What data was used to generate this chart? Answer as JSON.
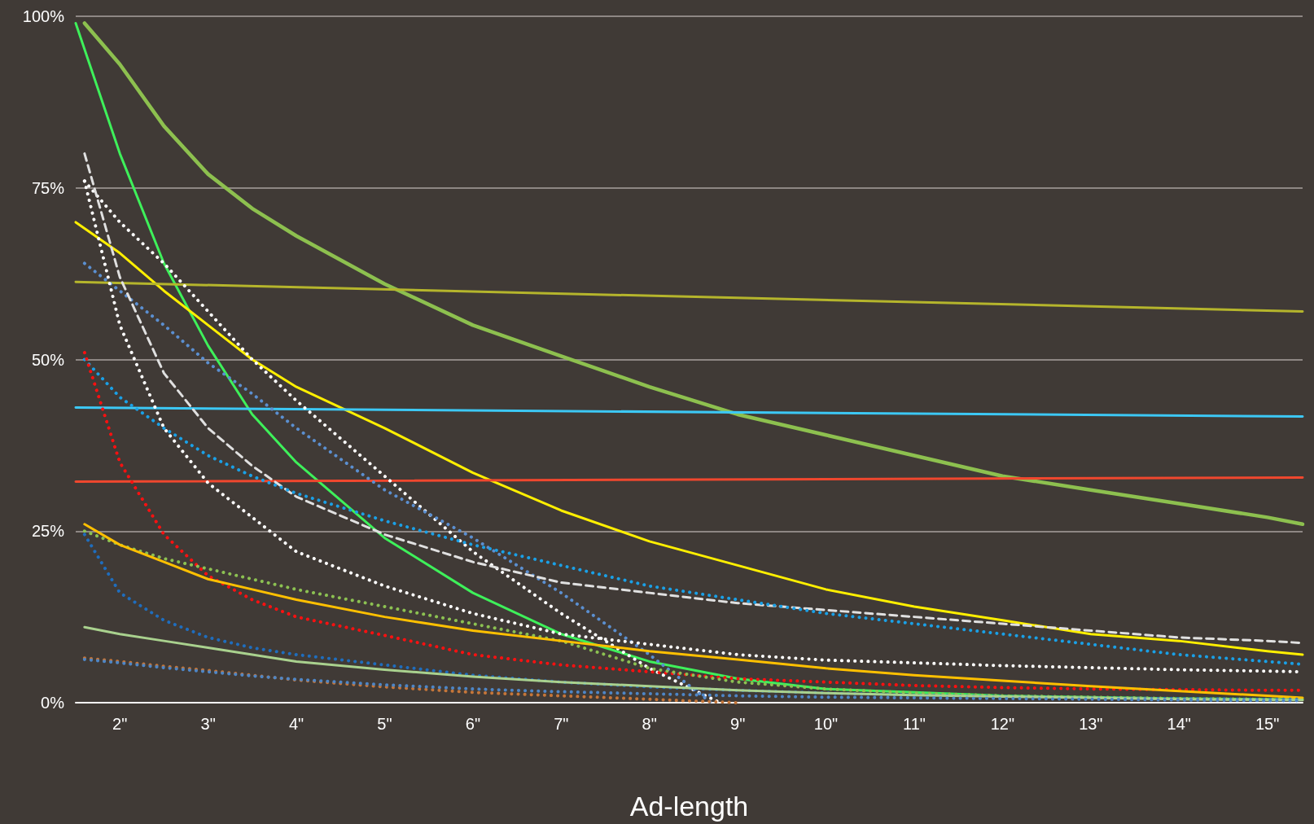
{
  "chart_data": {
    "type": "line",
    "xlabel": "Ad-length",
    "x": [
      1.6,
      2,
      2.5,
      3,
      3.5,
      4,
      5,
      6,
      7,
      8,
      9,
      10,
      11,
      12,
      13,
      14,
      15,
      15.4
    ],
    "xlim": [
      1.5,
      15.4
    ],
    "xticks": [
      {
        "value": 2,
        "label": "2\""
      },
      {
        "value": 3,
        "label": "3\""
      },
      {
        "value": 4,
        "label": "4\""
      },
      {
        "value": 5,
        "label": "5\""
      },
      {
        "value": 6,
        "label": "6\""
      },
      {
        "value": 7,
        "label": "7\""
      },
      {
        "value": 8,
        "label": "8\""
      },
      {
        "value": 9,
        "label": "9\""
      },
      {
        "value": 10,
        "label": "10\""
      },
      {
        "value": 11,
        "label": "11\""
      },
      {
        "value": 12,
        "label": "12\""
      },
      {
        "value": 13,
        "label": "13\""
      },
      {
        "value": 14,
        "label": "14\""
      },
      {
        "value": 15,
        "label": "15\""
      }
    ],
    "ylim": [
      0,
      100
    ],
    "yticks": [
      {
        "value": 0,
        "label": "0%"
      },
      {
        "value": 25,
        "label": "25%"
      },
      {
        "value": 50,
        "label": "50%"
      },
      {
        "value": 75,
        "label": "75%"
      },
      {
        "value": 100,
        "label": "100%"
      }
    ],
    "grid": "y",
    "marker": "none",
    "series": [
      {
        "color": "#8dc04f",
        "line_style": "solid",
        "values": [
          99,
          93,
          84,
          77,
          72,
          68,
          61,
          55,
          50.5,
          46,
          42,
          39,
          36,
          33,
          31,
          29,
          27,
          26
        ]
      },
      {
        "color": "#3ef05a",
        "line_style": "solid",
        "x": [
          1.5,
          2,
          2.5,
          3,
          3.5,
          4,
          5,
          6,
          7,
          8,
          9,
          10,
          11,
          12,
          13,
          14,
          15,
          15.4
        ],
        "values": [
          99,
          80,
          64,
          52,
          42,
          35,
          24,
          16,
          10,
          6,
          3.5,
          2,
          1.5,
          1,
          0.8,
          0.6,
          0.5,
          0.5
        ]
      },
      {
        "color": "#ffef00",
        "line_style": "solid",
        "x": [
          1.5,
          2,
          2.5,
          3,
          3.5,
          4,
          5,
          6,
          7,
          8,
          9,
          10,
          11,
          12,
          13,
          14,
          15,
          15.4
        ],
        "values": [
          70,
          65.5,
          60,
          55,
          50,
          46,
          40,
          33.5,
          28,
          23.5,
          20,
          16.5,
          14,
          12,
          10,
          9,
          7.5,
          7
        ]
      },
      {
        "color": "#b5b52c",
        "line_style": "solid",
        "x": [
          1.5,
          15.4
        ],
        "values": [
          61.3,
          57
        ]
      },
      {
        "color": "#3cc8f5",
        "line_style": "solid",
        "x": [
          1.5,
          15.4
        ],
        "values": [
          43,
          41.7
        ]
      },
      {
        "color": "#f0472e",
        "line_style": "solid",
        "x": [
          1.5,
          15.4
        ],
        "values": [
          32.2,
          32.8
        ]
      },
      {
        "color": "#ffffff",
        "line_style": "dotted",
        "x": [
          1.6,
          2,
          2.5,
          3,
          3.5,
          4,
          5,
          6,
          7,
          8,
          8.8
        ],
        "values": [
          76,
          70,
          64,
          57,
          50,
          44,
          33,
          22,
          13,
          5,
          0
        ]
      },
      {
        "color": "#5b8fd0",
        "line_style": "dotted",
        "x": [
          1.6,
          2,
          2.5,
          3,
          3.5,
          4,
          5,
          6,
          7,
          8,
          8.7
        ],
        "values": [
          64,
          60,
          55,
          49.5,
          45,
          40,
          31,
          24,
          16,
          7,
          0
        ]
      },
      {
        "color": "#ffffff",
        "line_style": "dotted",
        "values": [
          76,
          55,
          40,
          32,
          27,
          22,
          17,
          13,
          10,
          8.5,
          7,
          6.2,
          5.8,
          5.4,
          5.1,
          4.8,
          4.6,
          4.5
        ]
      },
      {
        "color": "#e0e0e0",
        "line_style": "dashed",
        "values": [
          80,
          62,
          48,
          40,
          34.5,
          30,
          24.5,
          20.5,
          17.5,
          16,
          14.5,
          13.5,
          12.5,
          11.5,
          10.5,
          9.5,
          9,
          8.7
        ]
      },
      {
        "color": "#1aa0e6",
        "line_style": "dotted",
        "values": [
          50,
          44.5,
          40,
          36,
          33,
          30.5,
          26.5,
          23,
          20,
          17,
          15,
          13,
          11.5,
          10,
          8.5,
          7,
          6,
          5.6
        ]
      },
      {
        "color": "#ff1010",
        "line_style": "dotted",
        "values": [
          51,
          35,
          24.5,
          18.5,
          15,
          12.5,
          9.8,
          7,
          5.5,
          4.5,
          3.5,
          3,
          2.5,
          2.2,
          2,
          1.9,
          1.8,
          1.8
        ]
      },
      {
        "color": "#8cc152",
        "line_style": "dotted",
        "values": [
          25,
          23,
          21,
          19.5,
          18,
          16.5,
          14,
          11.5,
          9,
          5,
          3,
          2,
          1.4,
          1,
          0.8,
          0.6,
          0.5,
          0.5
        ]
      },
      {
        "color": "#ffc000",
        "line_style": "solid",
        "values": [
          26,
          23,
          20.5,
          18,
          16.5,
          15,
          12.5,
          10.5,
          9,
          7.5,
          6.3,
          5,
          4,
          3.2,
          2.4,
          1.7,
          1,
          0.7
        ]
      },
      {
        "color": "#1f6dbd",
        "line_style": "dotted",
        "values": [
          24.5,
          16,
          12,
          9.5,
          8,
          7,
          5.5,
          4,
          3,
          2.3,
          1.8,
          1.4,
          1.1,
          0.9,
          0.7,
          0.6,
          0.5,
          0.5
        ]
      },
      {
        "color": "#a9d18e",
        "line_style": "solid",
        "values": [
          11,
          10,
          9,
          8,
          7,
          6,
          4.8,
          3.8,
          3,
          2.4,
          1.8,
          1.4,
          1.1,
          0.9,
          0.7,
          0.5,
          0.4,
          0.4
        ]
      },
      {
        "color": "#c5763a",
        "line_style": "dotted",
        "x": [
          1.6,
          2,
          2.5,
          3,
          3.5,
          4,
          5,
          6,
          7,
          8,
          9
        ],
        "values": [
          6.5,
          6,
          5.3,
          4.7,
          4,
          3.3,
          2.3,
          1.5,
          1,
          0.5,
          0
        ]
      },
      {
        "color": "#4e86c6",
        "line_style": "dotted",
        "values": [
          6.3,
          5.8,
          5.1,
          4.5,
          3.9,
          3.4,
          2.6,
          2,
          1.6,
          1.3,
          1,
          0.8,
          0.7,
          0.6,
          0.5,
          0.4,
          0.3,
          0.3
        ]
      }
    ]
  }
}
